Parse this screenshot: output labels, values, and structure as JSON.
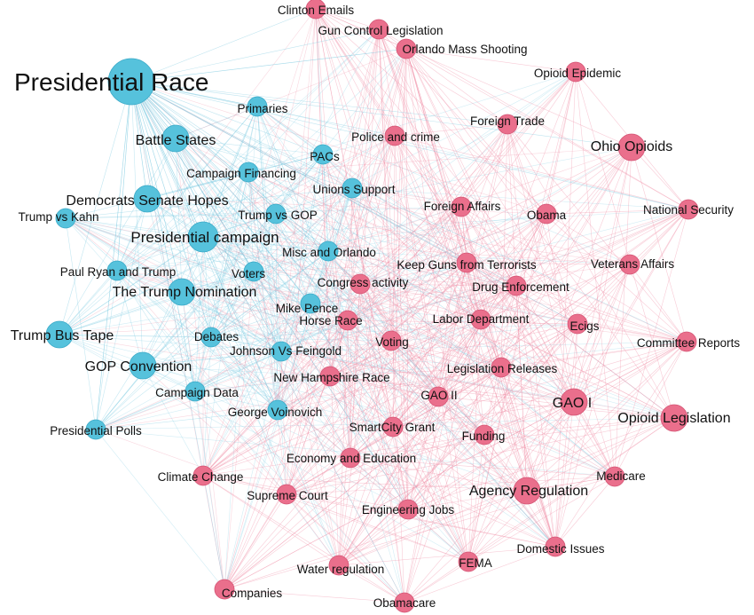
{
  "colors": {
    "blue_group": "#56c2dc",
    "red_group": "#ea6f8c",
    "blue_edge": "#7fcbe2",
    "red_edge": "#ef8ba3",
    "node_stroke": "#ffffff",
    "label": "#111111"
  },
  "nodes": [
    {
      "id": "presidential-race",
      "label": "Presidential Race",
      "group": "blue",
      "size": "xl"
    },
    {
      "id": "primaries",
      "label": "Primaries",
      "group": "blue",
      "size": "s"
    },
    {
      "id": "battle-states",
      "label": "Battle States",
      "group": "blue",
      "size": "m"
    },
    {
      "id": "pacs",
      "label": "PACs",
      "group": "blue",
      "size": "s"
    },
    {
      "id": "campaign-financing",
      "label": "Campaign Financing",
      "group": "blue",
      "size": "s"
    },
    {
      "id": "democrats-senate-hopes",
      "label": "Democrats Senate Hopes",
      "group": "blue",
      "size": "m"
    },
    {
      "id": "unions-support",
      "label": "Unions Support",
      "group": "blue",
      "size": "s"
    },
    {
      "id": "trump-vs-kahn",
      "label": "Trump vs Kahn",
      "group": "blue",
      "size": "s"
    },
    {
      "id": "trump-vs-gop",
      "label": "Trump vs GOP",
      "group": "blue",
      "size": "s"
    },
    {
      "id": "presidential-campaign",
      "label": "Presidential campaign",
      "group": "blue",
      "size": "l"
    },
    {
      "id": "misc-and-orlando",
      "label": "Misc and Orlando",
      "group": "blue",
      "size": "s"
    },
    {
      "id": "paul-ryan-and-trump",
      "label": "Paul Ryan and Trump",
      "group": "blue",
      "size": "s"
    },
    {
      "id": "voters",
      "label": "Voters",
      "group": "blue",
      "size": "s"
    },
    {
      "id": "trump-nomination",
      "label": "The Trump Nomination",
      "group": "blue",
      "size": "m"
    },
    {
      "id": "mike-pence",
      "label": "Mike Pence",
      "group": "blue",
      "size": "s"
    },
    {
      "id": "trump-bus-tape",
      "label": "Trump Bus Tape",
      "group": "blue",
      "size": "m"
    },
    {
      "id": "debates",
      "label": "Debates",
      "group": "blue",
      "size": "s"
    },
    {
      "id": "johnson-vs-feingold",
      "label": "Johnson Vs Feingold",
      "group": "blue",
      "size": "s"
    },
    {
      "id": "gop-convention",
      "label": "GOP Convention",
      "group": "blue",
      "size": "m"
    },
    {
      "id": "campaign-data",
      "label": "Campaign Data",
      "group": "blue",
      "size": "s"
    },
    {
      "id": "george-voinovich",
      "label": "George Voinovich",
      "group": "blue",
      "size": "s"
    },
    {
      "id": "presidential-polls",
      "label": "Presidential Polls",
      "group": "blue",
      "size": "s"
    },
    {
      "id": "clinton-emails",
      "label": "Clinton Emails",
      "group": "red",
      "size": "s"
    },
    {
      "id": "gun-control-legislation",
      "label": "Gun Control Legislation",
      "group": "red",
      "size": "s"
    },
    {
      "id": "orlando-mass-shooting",
      "label": "Orlando Mass Shooting",
      "group": "red",
      "size": "s"
    },
    {
      "id": "opioid-epidemic",
      "label": "Opioid Epidemic",
      "group": "red",
      "size": "s"
    },
    {
      "id": "foreign-trade",
      "label": "Foreign Trade",
      "group": "red",
      "size": "s"
    },
    {
      "id": "police-and-crime",
      "label": "Police and crime",
      "group": "red",
      "size": "s"
    },
    {
      "id": "ohio-opioids",
      "label": "Ohio Opioids",
      "group": "red",
      "size": "m"
    },
    {
      "id": "foreign-affairs",
      "label": "Foreign Affairs",
      "group": "red",
      "size": "s"
    },
    {
      "id": "obama",
      "label": "Obama",
      "group": "red",
      "size": "s"
    },
    {
      "id": "national-security",
      "label": "National Security",
      "group": "red",
      "size": "s"
    },
    {
      "id": "keep-guns-from-terrorists",
      "label": "Keep Guns from Terrorists",
      "group": "red",
      "size": "s"
    },
    {
      "id": "veterans-affairs",
      "label": "Veterans Affairs",
      "group": "red",
      "size": "s"
    },
    {
      "id": "congress-activity",
      "label": "Congress activity",
      "group": "red",
      "size": "s"
    },
    {
      "id": "drug-enforcement",
      "label": "Drug Enforcement",
      "group": "red",
      "size": "s"
    },
    {
      "id": "horse-race",
      "label": "Horse Race",
      "group": "red",
      "size": "s"
    },
    {
      "id": "labor-department",
      "label": "Labor Department",
      "group": "red",
      "size": "s"
    },
    {
      "id": "ecigs",
      "label": "Ecigs",
      "group": "red",
      "size": "s"
    },
    {
      "id": "voting",
      "label": "Voting",
      "group": "red",
      "size": "s"
    },
    {
      "id": "committee-reports",
      "label": "Committee Reports",
      "group": "red",
      "size": "s"
    },
    {
      "id": "legislation-releases",
      "label": "Legislation Releases",
      "group": "red",
      "size": "s"
    },
    {
      "id": "new-hampshire-race",
      "label": "New Hampshire Race",
      "group": "red",
      "size": "s"
    },
    {
      "id": "gao-ii",
      "label": "GAO II",
      "group": "red",
      "size": "s"
    },
    {
      "id": "gao-i",
      "label": "GAO I",
      "group": "red",
      "size": "m"
    },
    {
      "id": "opioid-legislation",
      "label": "Opioid Legislation",
      "group": "red",
      "size": "m"
    },
    {
      "id": "smartcity-grant",
      "label": "SmartCity Grant",
      "group": "red",
      "size": "s"
    },
    {
      "id": "funding",
      "label": "Funding",
      "group": "red",
      "size": "s"
    },
    {
      "id": "economy-and-education",
      "label": "Economy and Education",
      "group": "red",
      "size": "s"
    },
    {
      "id": "climate-change",
      "label": "Climate Change",
      "group": "red",
      "size": "s"
    },
    {
      "id": "medicare",
      "label": "Medicare",
      "group": "red",
      "size": "s"
    },
    {
      "id": "supreme-court",
      "label": "Supreme Court",
      "group": "red",
      "size": "s"
    },
    {
      "id": "agency-regulation",
      "label": "Agency Regulation",
      "group": "red",
      "size": "m"
    },
    {
      "id": "engineering-jobs",
      "label": "Engineering Jobs",
      "group": "red",
      "size": "s"
    },
    {
      "id": "domestic-issues",
      "label": "Domestic Issues",
      "group": "red",
      "size": "s"
    },
    {
      "id": "water-regulation",
      "label": "Water regulation",
      "group": "red",
      "size": "s"
    },
    {
      "id": "fema",
      "label": "FEMA",
      "group": "red",
      "size": "s"
    },
    {
      "id": "companies",
      "label": "Companies",
      "group": "red",
      "size": "s"
    },
    {
      "id": "obamacare",
      "label": "Obamacare",
      "group": "red",
      "size": "s"
    }
  ]
}
